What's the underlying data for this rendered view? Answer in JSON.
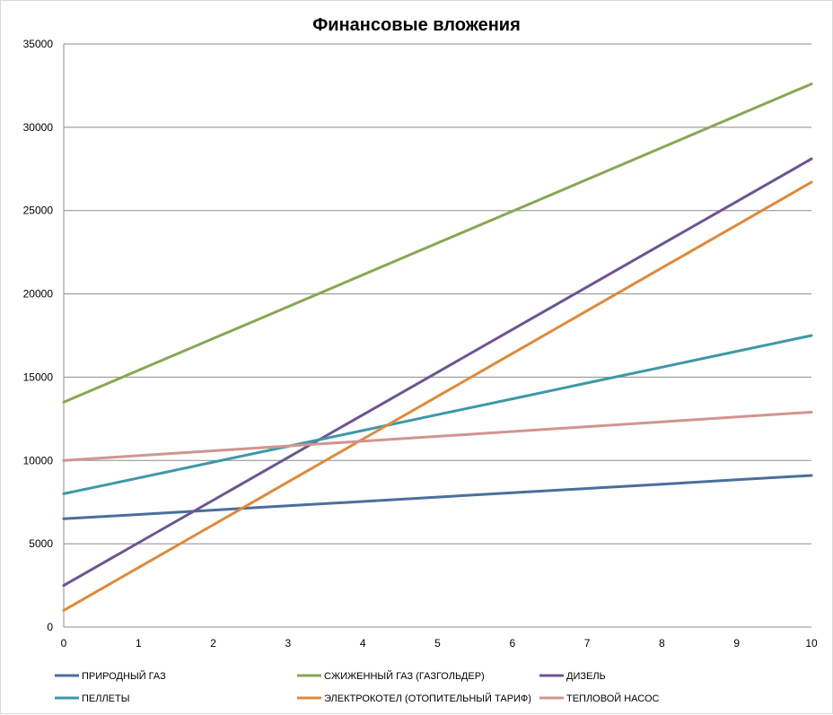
{
  "chart_data": {
    "type": "line",
    "title": "Финансовые вложения",
    "xlabel": "",
    "ylabel": "",
    "x": [
      0,
      1,
      2,
      3,
      4,
      5,
      6,
      7,
      8,
      9,
      10
    ],
    "xlim": [
      0,
      10
    ],
    "ylim": [
      0,
      35000
    ],
    "yticks": [
      0,
      5000,
      10000,
      15000,
      20000,
      25000,
      30000,
      35000
    ],
    "grid": "horizontal",
    "legend_position": "bottom",
    "series": [
      {
        "name": "ПРИРОДНЫЙ ГАЗ",
        "color": "#4a6f9c",
        "values": [
          6500,
          6760,
          7020,
          7280,
          7540,
          7800,
          8060,
          8320,
          8580,
          8840,
          9100
        ]
      },
      {
        "name": "СЖИЖЕННЫЙ ГАЗ (ГАЗГОЛЬДЕР)",
        "color": "#8aa653",
        "values": [
          13500,
          15410,
          17320,
          19230,
          21140,
          23050,
          24960,
          26870,
          28780,
          30690,
          32600
        ]
      },
      {
        "name": "ДИЗЕЛЬ",
        "color": "#6c5591",
        "values": [
          2500,
          5060,
          7620,
          10180,
          12740,
          15300,
          17860,
          20420,
          22980,
          25540,
          28100
        ]
      },
      {
        "name": "ПЕЛЛЕТЫ",
        "color": "#3e98a7",
        "values": [
          8000,
          8950,
          9900,
          10850,
          11800,
          12750,
          13700,
          14650,
          15600,
          16550,
          17500
        ]
      },
      {
        "name": "ЭЛЕКТРОКОТЕЛ (ОТОПИТЕЛЬНЫЙ ТАРИФ)",
        "color": "#dd8a3c",
        "values": [
          1000,
          3570,
          6140,
          8710,
          11280,
          13850,
          16420,
          18990,
          21560,
          24130,
          26700
        ]
      },
      {
        "name": "ТЕПЛОВОЙ НАСОС",
        "color": "#d19591",
        "values": [
          10000,
          10290,
          10580,
          10870,
          11160,
          11450,
          11740,
          12030,
          12320,
          12610,
          12900
        ]
      }
    ]
  }
}
